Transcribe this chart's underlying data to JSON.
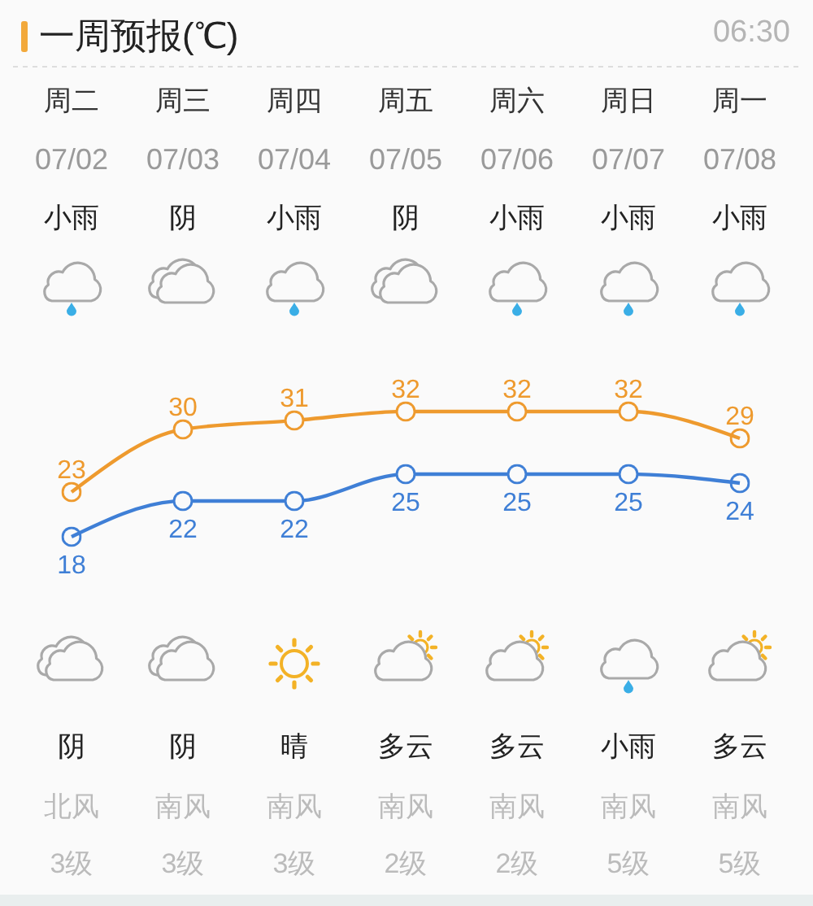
{
  "chart_data": {
    "type": "line",
    "title": "一周预报(℃)",
    "categories": [
      "周二",
      "周三",
      "周四",
      "周五",
      "周六",
      "周日",
      "周一"
    ],
    "series": [
      {
        "color": "#ee9a2e",
        "values": [
          23,
          30,
          31,
          32,
          32,
          32,
          29
        ]
      },
      {
        "color": "#3f7fd6",
        "values": [
          18,
          22,
          22,
          25,
          25,
          25,
          24
        ]
      }
    ],
    "marker": "circle",
    "data_labels": true,
    "tick_labels": "x",
    "annotations": [
      "06:30",
      "07/02",
      "07/03",
      "07/04",
      "07/05",
      "07/06",
      "07/07",
      "07/08",
      "小雨",
      "阴",
      "小雨",
      "阴",
      "小雨",
      "小雨",
      "小雨",
      "阴",
      "阴",
      "晴",
      "多云",
      "多云",
      "小雨",
      "多云",
      "北风",
      "南风",
      "南风",
      "南风",
      "南风",
      "南风",
      "南风",
      "3级",
      "3级",
      "3级",
      "2级",
      "2级",
      "5级",
      "5级"
    ]
  }
}
